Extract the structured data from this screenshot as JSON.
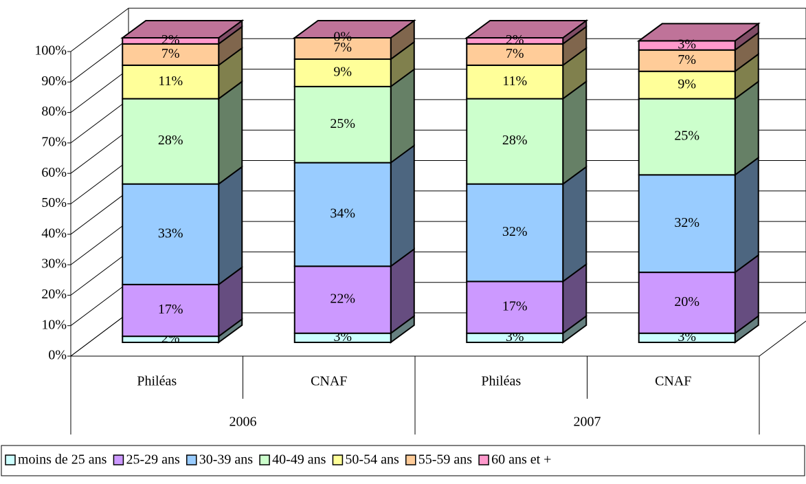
{
  "chart_data": {
    "type": "bar3d_stacked",
    "categories": [
      "Philéas",
      "CNAF",
      "Philéas",
      "CNAF"
    ],
    "groups": [
      "2006",
      "2007"
    ],
    "ylim": [
      0,
      100
    ],
    "yticks": [
      {
        "value": 0,
        "label": "0%"
      },
      {
        "value": 10,
        "label": "10%"
      },
      {
        "value": 20,
        "label": "20%"
      },
      {
        "value": 30,
        "label": "30%"
      },
      {
        "value": 40,
        "label": "40%"
      },
      {
        "value": 50,
        "label": "50%"
      },
      {
        "value": 60,
        "label": "60%"
      },
      {
        "value": 70,
        "label": "70%"
      },
      {
        "value": 80,
        "label": "80%"
      },
      {
        "value": 90,
        "label": "90%"
      },
      {
        "value": 100,
        "label": "100%"
      }
    ],
    "grid": true,
    "legend": "bottom",
    "series": [
      {
        "name": "moins de 25 ans",
        "color": "#ccffff",
        "values": [
          2,
          3,
          3,
          3
        ],
        "value_labels": [
          "2%",
          "3%",
          "3%",
          "3%"
        ]
      },
      {
        "name": "25-29 ans",
        "color": "#cc99ff",
        "values": [
          17,
          22,
          17,
          20
        ],
        "value_labels": [
          "17%",
          "22%",
          "17%",
          "20%"
        ]
      },
      {
        "name": "30-39 ans",
        "color": "#99ccff",
        "values": [
          33,
          34,
          32,
          32
        ],
        "value_labels": [
          "33%",
          "34%",
          "32%",
          "32%"
        ]
      },
      {
        "name": "40-49 ans",
        "color": "#ccffcc",
        "values": [
          28,
          25,
          28,
          25
        ],
        "value_labels": [
          "28%",
          "25%",
          "28%",
          "25%"
        ]
      },
      {
        "name": "50-54 ans",
        "color": "#ffff99",
        "values": [
          11,
          9,
          11,
          9
        ],
        "value_labels": [
          "11%",
          "9%",
          "11%",
          "9%"
        ]
      },
      {
        "name": "55-59 ans",
        "color": "#ffcc99",
        "values": [
          7,
          7,
          7,
          7
        ],
        "value_labels": [
          "7%",
          "7%",
          "7%",
          "7%"
        ]
      },
      {
        "name": "60 ans et +",
        "color": "#ff99cc",
        "values": [
          2,
          0,
          2,
          3
        ],
        "value_labels": [
          "2%",
          "0%",
          "2%",
          "3%"
        ]
      }
    ]
  }
}
